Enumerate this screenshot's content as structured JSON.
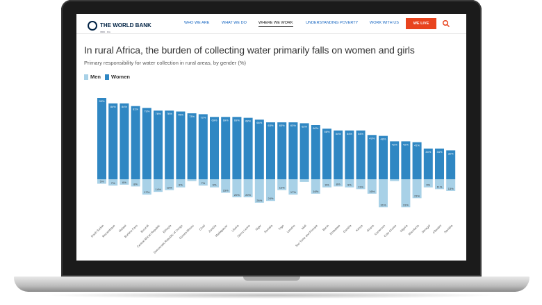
{
  "nav": {
    "logo_title": "THE WORLD BANK",
    "logo_sub": "IBRD · IDA",
    "items": [
      "WHO WE ARE",
      "WHAT WE DO",
      "WHERE WE WORK",
      "UNDERSTANDING POVERTY",
      "WORK WITH US"
    ],
    "active": "WHERE WE WORK",
    "live_label": "WE LIVE",
    "icons": {
      "search": "search-icon",
      "logo": "globe-icon",
      "live": "play-icon"
    }
  },
  "colors": {
    "men": "#a8d1e7",
    "women": "#2f87c3",
    "live": "#e8431d"
  },
  "chart_data": {
    "type": "bar",
    "title": "In rural Africa, the burden of collecting water primarily falls on women and girls",
    "subtitle": "Primary responsibility for water collection in rural areas, by gender (%)",
    "categories": [
      "South Sudan",
      "Mozambique",
      "Malawi",
      "Burkina Faso",
      "Burundi",
      "Central African Republic",
      "Ethiopia",
      "Democratic Republic of Congo",
      "Guinea-Bissau",
      "Chad",
      "Zambia",
      "Madagascar",
      "Liberia",
      "Sierra Leone",
      "Niger",
      "Somalia",
      "Togo",
      "Lesotho",
      "Mali",
      "Sao Tome and Principe",
      "Benin",
      "Zimbabwe",
      "Gambia",
      "Kenya",
      "Ghana",
      "Cameroon",
      "Cote d'Ivoire",
      "Nigeria",
      "Mauritania",
      "Senegal",
      "eSwatini",
      "Namibia"
    ],
    "series": [
      {
        "name": "Men",
        "values": [
          5,
          7,
          6,
          8,
          17,
          14,
          12,
          9,
          2,
          7,
          9,
          15,
          20,
          20,
          26,
          24,
          12,
          17,
          3,
          16,
          9,
          8,
          9,
          11,
          16,
          31,
          2,
          31,
          21,
          9,
          11,
          13
        ]
      },
      {
        "name": "Women",
        "values": [
          90,
          84,
          84,
          81,
          79,
          76,
          76,
          75,
          73,
          72,
          69,
          69,
          69,
          68,
          66,
          63,
          63,
          63,
          62,
          60,
          56,
          54,
          54,
          54,
          49,
          48,
          42,
          42,
          41,
          34,
          34,
          32
        ]
      }
    ],
    "data_labels": {
      "Men": [
        "5%",
        "7%",
        "6%",
        "8%",
        "17%",
        "14%",
        "12%",
        "9%",
        "",
        "7%",
        "9%",
        "15%",
        "20%",
        "20%",
        "26%",
        "24%",
        "12%",
        "17%",
        "",
        "16%",
        "9%",
        "8%",
        "9%",
        "11%",
        "16%",
        "31%",
        "",
        "31%",
        "21%",
        "9%",
        "11%",
        "13%"
      ],
      "Women": [
        "90%",
        "84%",
        "84%",
        "81%",
        "79%",
        "76%",
        "76%",
        "75%",
        "73%",
        "72%",
        "69%",
        "69%",
        "69%",
        "68%",
        "66%",
        "63%",
        "63%",
        "63%",
        "62%",
        "60%",
        "56%",
        "54%",
        "54%",
        "54%",
        "49%",
        "48%",
        "42%",
        "42%",
        "41%",
        "34%",
        "34%",
        "32%"
      ]
    },
    "legend": [
      "Men",
      "Women"
    ],
    "legend_position": "top-left",
    "grid": false
  }
}
